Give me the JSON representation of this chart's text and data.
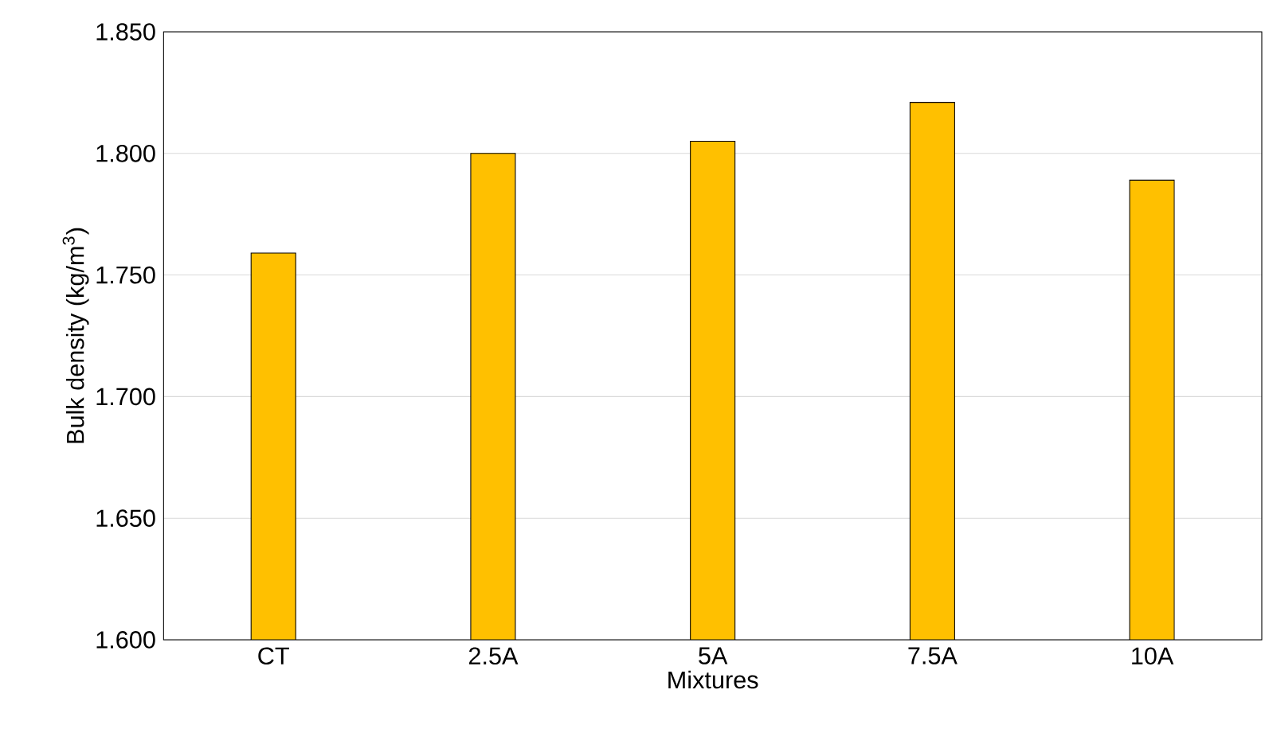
{
  "chart_data": {
    "type": "bar",
    "xlabel": "Mixtures",
    "ylabel": "Bulk density (kg/m$^{3}$)",
    "categories": [
      "CT",
      "2.5A",
      "5A",
      "7.5A",
      "10A"
    ],
    "values": [
      1.759,
      1.8,
      1.805,
      1.821,
      1.789
    ],
    "color": "#ffc000",
    "ylim": [
      1.6,
      1.85
    ],
    "yticks": [
      {
        "value": 1.6,
        "label": "1.600"
      },
      {
        "value": 1.65,
        "label": "1.650"
      },
      {
        "value": 1.7,
        "label": "1.700"
      },
      {
        "value": 1.75,
        "label": "1.750"
      },
      {
        "value": 1.8,
        "label": "1.800"
      },
      {
        "value": 1.85,
        "label": "1.850"
      }
    ],
    "grid": "y"
  }
}
